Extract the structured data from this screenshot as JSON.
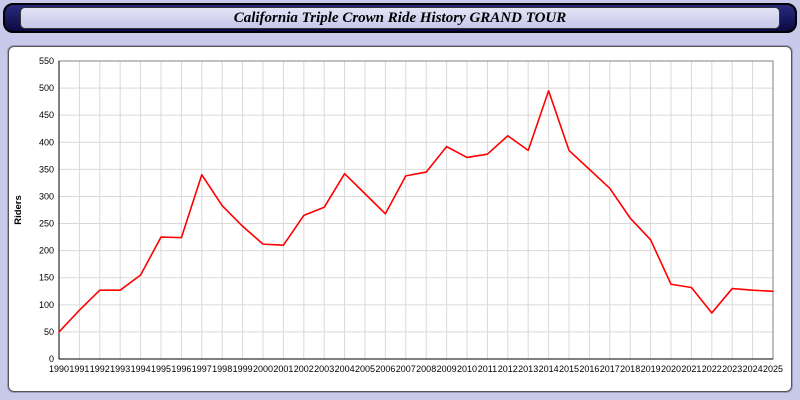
{
  "header": {
    "title": "California Triple Crown Ride History GRAND TOUR"
  },
  "chart_data": {
    "type": "line",
    "title": "California Triple Crown Ride History GRAND TOUR",
    "xlabel": "",
    "ylabel": "Riders",
    "ylim": [
      0,
      550
    ],
    "ytick_step": 50,
    "grid": true,
    "legend": "none",
    "line_color": "#ff0000",
    "x": [
      1990,
      1991,
      1992,
      1993,
      1994,
      1995,
      1996,
      1997,
      1998,
      1999,
      2000,
      2001,
      2002,
      2003,
      2004,
      2005,
      2006,
      2007,
      2008,
      2009,
      2010,
      2011,
      2012,
      2013,
      2014,
      2015,
      2016,
      2017,
      2018,
      2019,
      2020,
      2021,
      2022,
      2023,
      2024,
      2025
    ],
    "series": [
      {
        "name": "Riders",
        "values": [
          50,
          90,
          127,
          127,
          155,
          225,
          224,
          340,
          283,
          245,
          212,
          210,
          265,
          280,
          342,
          305,
          268,
          338,
          345,
          392,
          372,
          378,
          412,
          385,
          495,
          385,
          350,
          315,
          260,
          220,
          138,
          132,
          85,
          130,
          127,
          125
        ]
      }
    ]
  }
}
